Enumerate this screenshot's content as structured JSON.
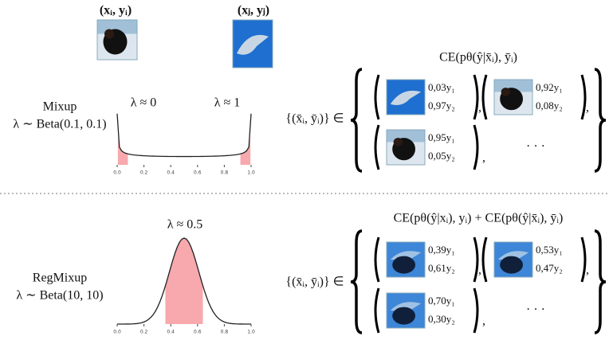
{
  "top": {
    "label_i": "(xᵢ, yᵢ)",
    "label_j": "(xⱼ, yⱼ)",
    "method": "Mixup",
    "prior": "λ ∼ Beta(0.1, 0.1)",
    "annotations": [
      "λ ≈ 0",
      "λ ≈ 1"
    ],
    "ticks": [
      "0.0",
      "0.2",
      "0.4",
      "0.6",
      "0.8",
      "1.0"
    ],
    "loss": "CE(pθ(ŷ|x̄ᵢ), ȳᵢ)",
    "set": "{(x̄ᵢ, ȳᵢ)} ∈",
    "separator": ",",
    "samples": [
      {
        "w1": "0,03y₁",
        "w2": "0,97y₂"
      },
      {
        "w1": "0,92y₁",
        "w2": "0,08y₂"
      },
      {
        "w1": "0,95y₁",
        "w2": "0,05y₂"
      }
    ],
    "ellipsis": "· · ·"
  },
  "bottom": {
    "method": "RegMixup",
    "prior": "λ ∼ Beta(10, 10)",
    "annotations": [
      "λ ≈ 0.5"
    ],
    "ticks": [
      "0.0",
      "0.2",
      "0.4",
      "0.6",
      "0.8",
      "1.0"
    ],
    "loss": "CE(pθ(ŷ|xᵢ), yᵢ) + CE(pθ(ŷ|x̄ᵢ), ȳᵢ)",
    "set": "{(x̄ᵢ, ȳᵢ)} ∈",
    "separator": ",",
    "samples": [
      {
        "w1": "0,39y₁",
        "w2": "0,61y₂"
      },
      {
        "w1": "0,53y₁",
        "w2": "0,47y₂"
      },
      {
        "w1": "0,70y₁",
        "w2": "0,30y₂"
      }
    ],
    "ellipsis": "· · ·"
  }
}
